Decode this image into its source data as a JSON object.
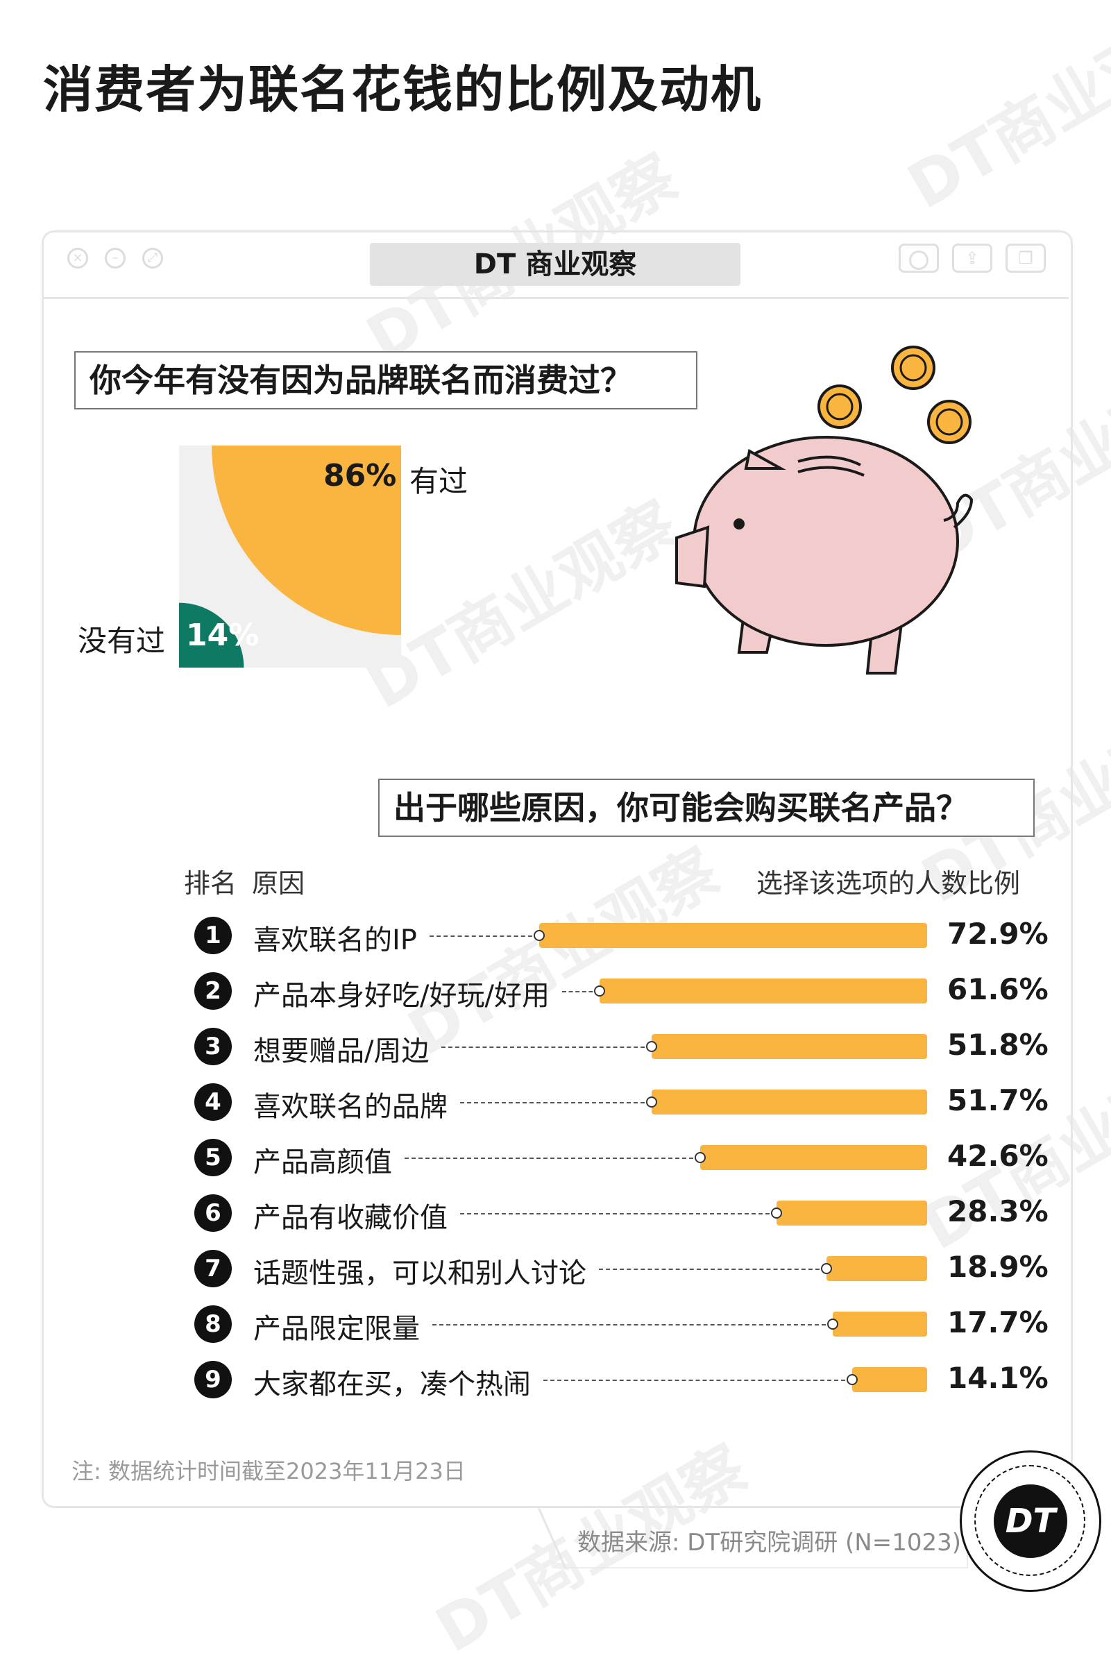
{
  "title": "消费者为联名花钱的比例及动机",
  "watermark": "DT商业观察",
  "brand_box": "DT 商业观察",
  "brand_badge": "DT",
  "q1": {
    "question": "你今年有没有因为品牌联名而消费过？",
    "yes_label": "有过",
    "yes_pct": "86%",
    "no_label": "没有过",
    "no_pct": "14%"
  },
  "q2": {
    "question": "出于哪些原因，你可能会购买联名产品？",
    "header_rank": "排名",
    "header_reason": "原因",
    "header_value": "选择该选项的人数比例"
  },
  "note": "注: 数据统计时间截至2023年11月23日",
  "source": "数据来源: DT研究院调研 (N=1023)",
  "colors": {
    "bar": "#f9b53f",
    "yes": "#f9b53f",
    "no": "#0e7a63",
    "piggy": "#f2cccc"
  },
  "icons": [
    "close-dot-icon",
    "minimize-dot-icon",
    "expand-dot-icon",
    "piggy-bank-icon",
    "coin-icon"
  ],
  "chart_data": [
    {
      "type": "pie",
      "categories": [
        "有过",
        "没有过"
      ],
      "values": [
        86,
        14
      ],
      "labels": [
        "86%",
        "14%"
      ]
    },
    {
      "type": "bar",
      "orientation": "horizontal",
      "categories": [
        "喜欢联名的IP",
        "产品本身好吃/好玩/好用",
        "想要赠品/周边",
        "喜欢联名的品牌",
        "产品高颜值",
        "产品有收藏价值",
        "话题性强，可以和别人讨论",
        "产品限定限量",
        "大家都在买，凑个热闹"
      ],
      "ranks": [
        "1",
        "2",
        "3",
        "4",
        "5",
        "6",
        "7",
        "8",
        "9"
      ],
      "values": [
        72.9,
        61.6,
        51.8,
        51.7,
        42.6,
        28.3,
        18.9,
        17.7,
        14.1
      ],
      "labels": [
        "72.9%",
        "61.6%",
        "51.8%",
        "51.7%",
        "42.6%",
        "28.3%",
        "18.9%",
        "17.7%",
        "14.1%"
      ],
      "xlim": [
        0,
        100
      ]
    }
  ]
}
